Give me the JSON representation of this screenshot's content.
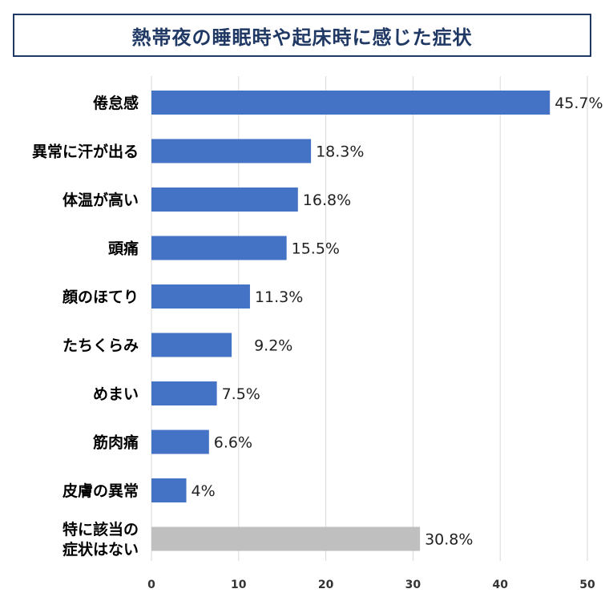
{
  "title": "熱帯夜の睡眠時や起床時に感じた症状",
  "colors": {
    "bar_primary": "#4472c4",
    "bar_other": "#bfbfbf",
    "grid": "#d9d9d9",
    "title": "#1f3864"
  },
  "chart_data": {
    "type": "bar",
    "orientation": "horizontal",
    "title": "熱帯夜の睡眠時や起床時に感じた症状",
    "categories": [
      [
        "倦怠感"
      ],
      [
        "異常に汗が出る"
      ],
      [
        "体温が高い"
      ],
      [
        "頭痛"
      ],
      [
        "顔のほてり"
      ],
      [
        "たちくらみ"
      ],
      [
        "めまい"
      ],
      [
        "筋肉痛"
      ],
      [
        "皮膚の異常"
      ],
      [
        "特に該当の",
        "症状はない"
      ]
    ],
    "values": [
      45.7,
      18.3,
      16.8,
      15.5,
      11.3,
      9.2,
      7.5,
      6.6,
      4,
      30.8
    ],
    "value_labels": [
      "45.7%",
      "18.3%",
      "16.8%",
      "15.5%",
      "11.3%",
      "9.2%",
      "7.5%",
      "6.6%",
      "4%",
      "30.8%"
    ],
    "highlight_gray": [
      9
    ],
    "xlim": [
      0,
      50
    ],
    "xticks": [
      0,
      10,
      20,
      30,
      40,
      50
    ],
    "grid": true,
    "legend": "none"
  }
}
